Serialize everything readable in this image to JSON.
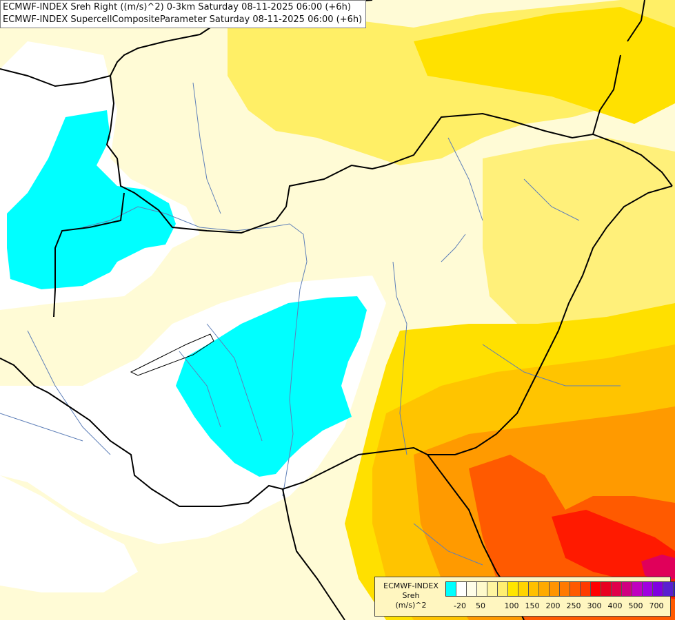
{
  "title": {
    "line1": "ECMWF-INDEX Sreh Right ((m/s)^2) 0-3km Saturday 08-11-2025 06:00 (+6h)",
    "line2": "ECMWF-INDEX SupercellCompositeParameter Saturday 08-11-2025 06:00 (+6h)"
  },
  "legend": {
    "line1": "ECMWF-INDEX",
    "line2": "Sreh",
    "line3": "(m/s)^2",
    "colors": [
      "#00ffff",
      "#ffffff",
      "#fffde8",
      "#fffacc",
      "#fff5a0",
      "#ffee70",
      "#ffe600",
      "#ffd400",
      "#ffc000",
      "#ffaa00",
      "#ff9400",
      "#ff7a00",
      "#ff5a00",
      "#ff3a00",
      "#ff0000",
      "#e80020",
      "#e0004a",
      "#d00080",
      "#c000c0",
      "#a000e0",
      "#8000e0",
      "#5a20d0",
      "#3020b0",
      "#101080"
    ],
    "ticks": [
      "-20",
      "50",
      "100",
      "150",
      "200",
      "250",
      "300",
      "400",
      "500",
      "700"
    ]
  }
}
